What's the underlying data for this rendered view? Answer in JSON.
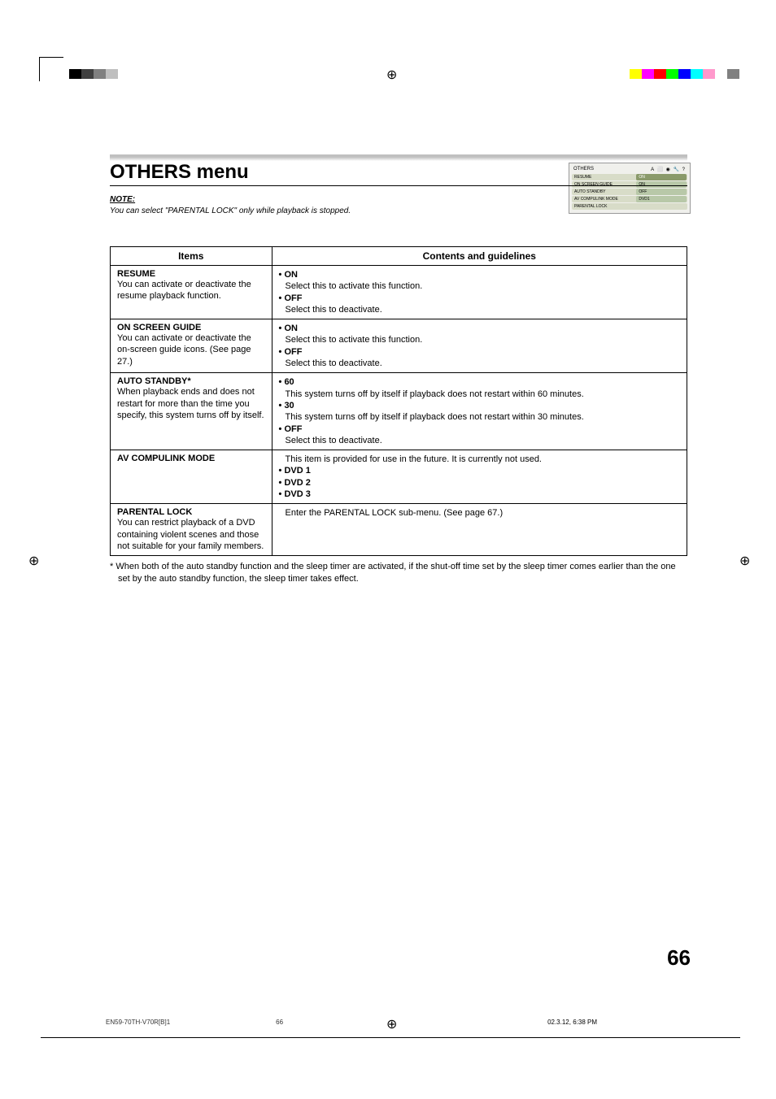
{
  "color_bars": {
    "left": [
      "#000000",
      "#404040",
      "#808080",
      "#bfbfbf",
      "#ffffff",
      "#ffffff",
      "#ffffff",
      "#ffffff",
      "#ffffff"
    ],
    "right": [
      "#ffff00",
      "#ff00ff",
      "#ff0000",
      "#00ff00",
      "#0000ff",
      "#00ffff",
      "#ff99cc",
      "#ffffff",
      "#808080"
    ]
  },
  "title": "OTHERS  menu",
  "note_label": "NOTE:",
  "note_text": "You can select \"PARENTAL LOCK\" only while playback is stopped.",
  "mini_menu": {
    "header": "OTHERS",
    "rows": [
      {
        "label": "RESUME",
        "value": "ON",
        "active": true
      },
      {
        "label": "ON SCREEN GUIDE",
        "value": "ON",
        "active": false
      },
      {
        "label": "AUTO STANDBY",
        "value": "OFF",
        "active": false
      },
      {
        "label": "AV COMPULINK MODE",
        "value": "DVD1",
        "active": false
      },
      {
        "label": "PARENTAL LOCK",
        "value": "",
        "active": false
      }
    ]
  },
  "table": {
    "headers": {
      "items": "Items",
      "contents": "Contents and guidelines"
    },
    "rows": [
      {
        "title": "RESUME",
        "desc": "You can activate or deactivate the resume playback function.",
        "contents": [
          {
            "type": "head",
            "text": "ON"
          },
          {
            "type": "sub",
            "text": "Select this to activate this function."
          },
          {
            "type": "head",
            "text": "OFF"
          },
          {
            "type": "sub",
            "text": "Select this to deactivate."
          }
        ]
      },
      {
        "title": "ON SCREEN GUIDE",
        "desc": "You can activate or deactivate the on-screen guide icons. (See page 27.)",
        "contents": [
          {
            "type": "head",
            "text": "ON"
          },
          {
            "type": "sub",
            "text": "Select this to activate this function."
          },
          {
            "type": "head",
            "text": "OFF"
          },
          {
            "type": "sub",
            "text": "Select this to deactivate."
          }
        ]
      },
      {
        "title": "AUTO STANDBY*",
        "desc": "When playback ends and does not restart for more than the time you specify, this system turns off by itself.",
        "contents": [
          {
            "type": "head",
            "text": "60"
          },
          {
            "type": "sub",
            "text": "This system turns off by itself if playback does not restart within 60 minutes."
          },
          {
            "type": "head",
            "text": "30"
          },
          {
            "type": "sub",
            "text": "This system turns off by itself if playback does not restart within 30 minutes."
          },
          {
            "type": "head",
            "text": "OFF"
          },
          {
            "type": "sub",
            "text": "Select this to deactivate."
          }
        ]
      },
      {
        "title": "AV COMPULINK MODE",
        "desc": "",
        "contents": [
          {
            "type": "sub",
            "text": "This item is provided for use in the future. It is currently not used."
          },
          {
            "type": "head",
            "text": "DVD 1"
          },
          {
            "type": "head",
            "text": "DVD 2"
          },
          {
            "type": "head",
            "text": "DVD 3"
          }
        ]
      },
      {
        "title": "PARENTAL LOCK",
        "desc": "You can restrict playback of a DVD containing violent scenes and those not suitable for your family members.",
        "contents": [
          {
            "type": "sub",
            "text": "Enter the PARENTAL LOCK sub-menu. (See page 67.)"
          }
        ]
      }
    ]
  },
  "footnote": "*  When both of the auto standby function and the sleep timer are activated, if the shut-off time set by the sleep timer comes earlier than the one set by the auto standby function, the sleep timer takes effect.",
  "page_num": "66",
  "footer": {
    "file": "EN59-70TH-V70R[B]1",
    "page": "66",
    "date": "02.3.12, 6:38 PM"
  }
}
